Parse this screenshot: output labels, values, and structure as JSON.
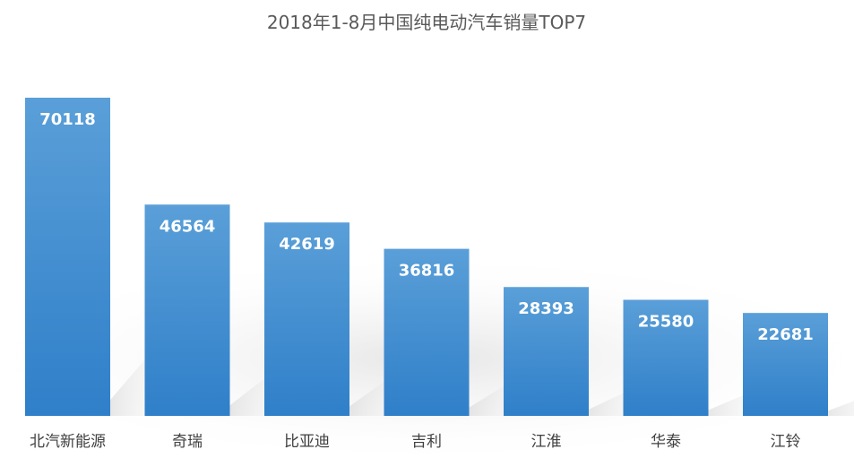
{
  "chart_data": {
    "type": "bar",
    "title": "2018年1-8月中国纯电动汽车销量TOP7",
    "categories": [
      "北汽新能源",
      "奇瑞",
      "比亚迪",
      "吉利",
      "江淮",
      "华泰",
      "江铃"
    ],
    "values": [
      70118,
      46564,
      42619,
      36816,
      28393,
      25580,
      22681
    ],
    "data_labels": [
      "70118",
      "46564",
      "42619",
      "36816",
      "28393",
      "25580",
      "22681"
    ],
    "xlabel": "",
    "ylabel": "",
    "ylim": [
      0,
      70118
    ],
    "grid": false,
    "legend": "none",
    "colors": {
      "bar_top": "#5a9fd8",
      "bar_bottom": "#2f7fc9",
      "title": "#595959",
      "category_text": "#404040",
      "data_label": "#ffffff"
    }
  }
}
